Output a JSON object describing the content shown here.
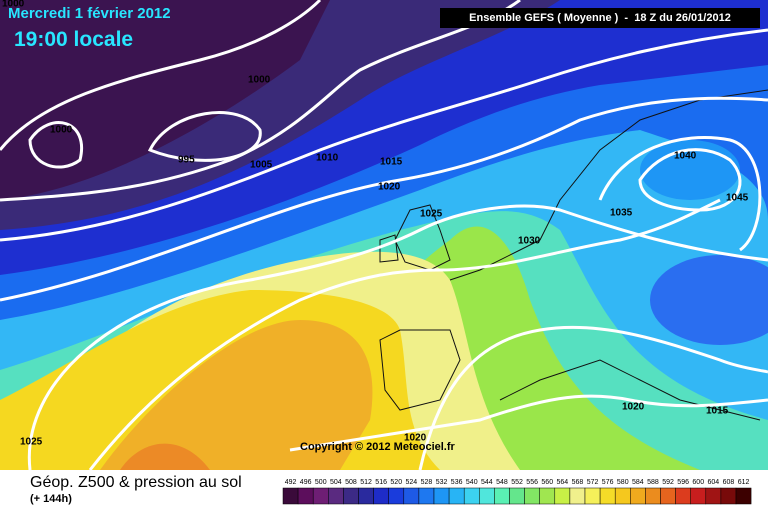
{
  "header": {
    "date": "Mercredi 1 février 2012",
    "time": "19:00 locale",
    "model": "Ensemble GEFS ( Moyenne )  -  18 Z du 26/01/2012"
  },
  "isobar_labels": [
    1000,
    1000,
    1000,
    995,
    1005,
    1010,
    1015,
    1020,
    1025,
    1030,
    1035,
    1040,
    1045,
    1020,
    1015,
    1025,
    1020
  ],
  "copyright": "Copyright © 2012 Meteociel.fr",
  "footer": {
    "title": "Géop. Z500 & pression au sol",
    "lead": "(+ 144h)"
  },
  "scale": {
    "levels": [
      492,
      496,
      500,
      504,
      508,
      512,
      516,
      520,
      524,
      528,
      532,
      536,
      540,
      544,
      548,
      552,
      556,
      560,
      564,
      568,
      572,
      576,
      580,
      584,
      588,
      592,
      596,
      600,
      604,
      608,
      612
    ],
    "colors": [
      "#3a0a3a",
      "#5c0e5c",
      "#6e1e74",
      "#5a2a80",
      "#3c2a86",
      "#2a2a9e",
      "#1e2cc8",
      "#1a3cdc",
      "#1e5ae6",
      "#1e78f0",
      "#1e96f5",
      "#28b4f5",
      "#3cd2f0",
      "#50e6dc",
      "#5af0b4",
      "#64e68c",
      "#82e664",
      "#a0e650",
      "#c8f046",
      "#f0f08c",
      "#f5f05a",
      "#f5dc28",
      "#f5c81e",
      "#f0aa1e",
      "#eb8c1e",
      "#e6641e",
      "#dc3c1e",
      "#c81e1e",
      "#a01414",
      "#780a0a",
      "#3c0000"
    ]
  }
}
